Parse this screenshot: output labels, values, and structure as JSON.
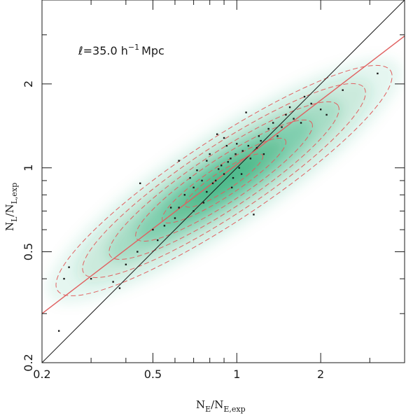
{
  "chart_data": {
    "type": "scatter",
    "annotation": "ℓ=35.0 h",
    "annotation_exp": "−1",
    "annotation_unit": "Mpc",
    "xlabel_main": "N",
    "xlabel_sub": "E",
    "xlabel_mid": "/N",
    "xlabel_sub2": "E,exp",
    "ylabel_main": "N",
    "ylabel_sub": "L",
    "ylabel_mid": "/N",
    "ylabel_sub2": "L,exp",
    "xscale": "log",
    "yscale": "log",
    "xlim": [
      0.2,
      4.0
    ],
    "ylim": [
      0.2,
      4.0
    ],
    "x_ticks": [
      {
        "value": 0.2,
        "label": "0.2"
      },
      {
        "value": 0.5,
        "label": "0.5"
      },
      {
        "value": 1,
        "label": "1"
      },
      {
        "value": 2,
        "label": "2"
      }
    ],
    "y_ticks": [
      {
        "value": 0.2,
        "label": "0.2"
      },
      {
        "value": 0.5,
        "label": "0.5"
      },
      {
        "value": 1,
        "label": "1"
      },
      {
        "value": 2,
        "label": "2"
      }
    ],
    "density_color": "#1aa56a",
    "line_color": "#1a1a1a",
    "fit_color": "#e06060",
    "point_color": "#1a1a1a",
    "density_center": [
      0.9,
      0.9
    ],
    "density_axis_slope": 0.66,
    "identity_line": {
      "x": [
        0.2,
        4.0
      ],
      "y": [
        0.2,
        4.0
      ]
    },
    "fit_line": {
      "x": [
        0.2,
        4.0
      ],
      "y": [
        0.3,
        2.97
      ]
    },
    "contour_levels": [
      0.95,
      0.8,
      0.65,
      0.5,
      0.35,
      0.22
    ],
    "points": [
      [
        0.23,
        0.26
      ],
      [
        0.24,
        0.4
      ],
      [
        0.25,
        0.44
      ],
      [
        0.3,
        0.4
      ],
      [
        0.36,
        0.39
      ],
      [
        0.38,
        0.37
      ],
      [
        0.4,
        0.45
      ],
      [
        0.45,
        0.88
      ],
      [
        0.5,
        0.6
      ],
      [
        0.55,
        0.62
      ],
      [
        0.6,
        0.66
      ],
      [
        0.62,
        0.72
      ],
      [
        0.65,
        0.8
      ],
      [
        0.7,
        0.85
      ],
      [
        0.72,
        0.98
      ],
      [
        0.75,
        0.9
      ],
      [
        0.78,
        1.06
      ],
      [
        0.8,
        1.12
      ],
      [
        0.82,
        0.88
      ],
      [
        0.85,
        1.32
      ],
      [
        0.88,
        1.02
      ],
      [
        0.9,
        0.95
      ],
      [
        0.92,
        1.2
      ],
      [
        0.95,
        1.08
      ],
      [
        0.97,
        0.92
      ],
      [
        1.0,
        1.22
      ],
      [
        1.02,
        1.0
      ],
      [
        1.05,
        1.15
      ],
      [
        1.08,
        1.58
      ],
      [
        1.1,
        1.2
      ],
      [
        1.12,
        1.08
      ],
      [
        1.15,
        0.68
      ],
      [
        1.2,
        1.3
      ],
      [
        1.25,
        1.12
      ],
      [
        1.3,
        1.38
      ],
      [
        1.35,
        1.45
      ],
      [
        1.45,
        1.4
      ],
      [
        1.5,
        1.55
      ],
      [
        1.6,
        1.5
      ],
      [
        1.75,
        1.8
      ],
      [
        1.85,
        1.7
      ],
      [
        2.0,
        1.62
      ],
      [
        2.1,
        1.55
      ],
      [
        2.4,
        1.9
      ],
      [
        3.2,
        2.18
      ],
      [
        0.62,
        1.06
      ],
      [
        0.7,
        0.7
      ],
      [
        0.78,
        0.82
      ],
      [
        0.86,
        0.99
      ],
      [
        0.93,
        1.05
      ],
      [
        0.99,
        1.12
      ],
      [
        1.04,
        0.95
      ],
      [
        1.18,
        1.18
      ],
      [
        1.4,
        1.3
      ],
      [
        0.58,
        0.72
      ],
      [
        0.68,
        0.92
      ],
      [
        0.76,
        0.75
      ],
      [
        0.84,
        0.9
      ],
      [
        0.96,
        0.85
      ],
      [
        1.22,
        1.25
      ],
      [
        1.55,
        1.65
      ],
      [
        1.7,
        1.45
      ],
      [
        0.52,
        0.55
      ],
      [
        0.44,
        0.5
      ],
      [
        0.9,
        1.28
      ]
    ]
  }
}
